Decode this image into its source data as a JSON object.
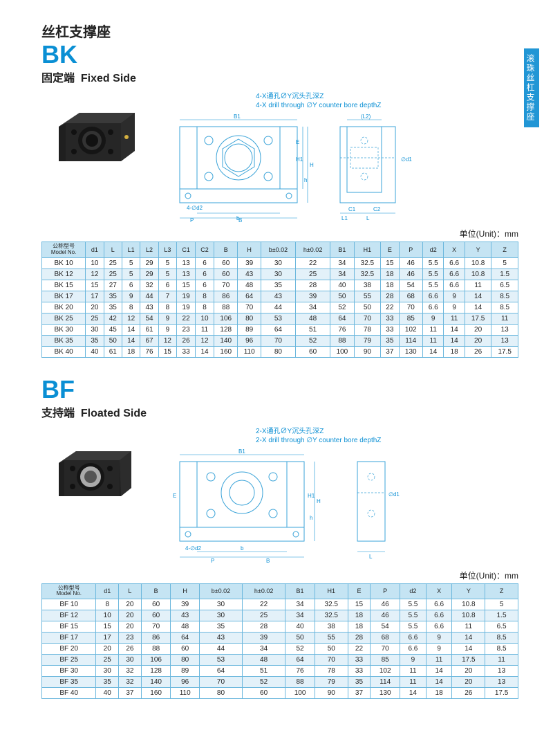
{
  "sideTab": "滚珠丝杠支撑座",
  "unitLabel": "单位(Unit)：mm",
  "bk": {
    "titleCn": "丝杠支撑座",
    "code": "BK",
    "subCn": "固定端",
    "subEn": "Fixed Side",
    "noteCn": "4-X通孔∅Y沉头孔深Z",
    "noteEn": "4-X drill through ∅Y counter bore depthZ",
    "colors": {
      "line": "#3aa3d8",
      "fill": "#c5e4f3",
      "photo": "#2a2a2a"
    },
    "table": {
      "headers": [
        "公称型号\nModel No.",
        "d1",
        "L",
        "L1",
        "L2",
        "L3",
        "C1",
        "C2",
        "B",
        "H",
        "b±0.02",
        "h±0.02",
        "B1",
        "H1",
        "E",
        "P",
        "d2",
        "X",
        "Y",
        "Z"
      ],
      "rows": [
        [
          "BK 10",
          "10",
          "25",
          "5",
          "29",
          "5",
          "13",
          "6",
          "60",
          "39",
          "30",
          "22",
          "34",
          "32.5",
          "15",
          "46",
          "5.5",
          "6.6",
          "10.8",
          "5"
        ],
        [
          "BK 12",
          "12",
          "25",
          "5",
          "29",
          "5",
          "13",
          "6",
          "60",
          "43",
          "30",
          "25",
          "34",
          "32.5",
          "18",
          "46",
          "5.5",
          "6.6",
          "10.8",
          "1.5"
        ],
        [
          "BK 15",
          "15",
          "27",
          "6",
          "32",
          "6",
          "15",
          "6",
          "70",
          "48",
          "35",
          "28",
          "40",
          "38",
          "18",
          "54",
          "5.5",
          "6.6",
          "11",
          "6.5"
        ],
        [
          "BK 17",
          "17",
          "35",
          "9",
          "44",
          "7",
          "19",
          "8",
          "86",
          "64",
          "43",
          "39",
          "50",
          "55",
          "28",
          "68",
          "6.6",
          "9",
          "14",
          "8.5"
        ],
        [
          "BK 20",
          "20",
          "35",
          "8",
          "43",
          "8",
          "19",
          "8",
          "88",
          "70",
          "44",
          "34",
          "52",
          "50",
          "22",
          "70",
          "6.6",
          "9",
          "14",
          "8.5"
        ],
        [
          "BK 25",
          "25",
          "42",
          "12",
          "54",
          "9",
          "22",
          "10",
          "106",
          "80",
          "53",
          "48",
          "64",
          "70",
          "33",
          "85",
          "9",
          "11",
          "17.5",
          "11"
        ],
        [
          "BK 30",
          "30",
          "45",
          "14",
          "61",
          "9",
          "23",
          "11",
          "128",
          "89",
          "64",
          "51",
          "76",
          "78",
          "33",
          "102",
          "11",
          "14",
          "20",
          "13"
        ],
        [
          "BK 35",
          "35",
          "50",
          "14",
          "67",
          "12",
          "26",
          "12",
          "140",
          "96",
          "70",
          "52",
          "88",
          "79",
          "35",
          "114",
          "11",
          "14",
          "20",
          "13"
        ],
        [
          "BK 40",
          "40",
          "61",
          "18",
          "76",
          "15",
          "33",
          "14",
          "160",
          "110",
          "80",
          "60",
          "100",
          "90",
          "37",
          "130",
          "14",
          "18",
          "26",
          "17.5"
        ]
      ]
    }
  },
  "bf": {
    "code": "BF",
    "subCn": "支持端",
    "subEn": "Floated Side",
    "noteCn": "2-X通孔∅Y沉头孔深Z",
    "noteEn": "2-X drill through ∅Y counter bore depthZ",
    "table": {
      "headers": [
        "公称型号\nModel No.",
        "d1",
        "L",
        "B",
        "H",
        "b±0.02",
        "h±0.02",
        "B1",
        "H1",
        "E",
        "P",
        "d2",
        "X",
        "Y",
        "Z"
      ],
      "rows": [
        [
          "BF 10",
          "8",
          "20",
          "60",
          "39",
          "30",
          "22",
          "34",
          "32.5",
          "15",
          "46",
          "5.5",
          "6.6",
          "10.8",
          "5"
        ],
        [
          "BF 12",
          "10",
          "20",
          "60",
          "43",
          "30",
          "25",
          "34",
          "32.5",
          "18",
          "46",
          "5.5",
          "6.6",
          "10.8",
          "1.5"
        ],
        [
          "BF 15",
          "15",
          "20",
          "70",
          "48",
          "35",
          "28",
          "40",
          "38",
          "18",
          "54",
          "5.5",
          "6.6",
          "11",
          "6.5"
        ],
        [
          "BF 17",
          "17",
          "23",
          "86",
          "64",
          "43",
          "39",
          "50",
          "55",
          "28",
          "68",
          "6.6",
          "9",
          "14",
          "8.5"
        ],
        [
          "BF 20",
          "20",
          "26",
          "88",
          "60",
          "44",
          "34",
          "52",
          "50",
          "22",
          "70",
          "6.6",
          "9",
          "14",
          "8.5"
        ],
        [
          "BF 25",
          "25",
          "30",
          "106",
          "80",
          "53",
          "48",
          "64",
          "70",
          "33",
          "85",
          "9",
          "11",
          "17.5",
          "11"
        ],
        [
          "BF 30",
          "30",
          "32",
          "128",
          "89",
          "64",
          "51",
          "76",
          "78",
          "33",
          "102",
          "11",
          "14",
          "20",
          "13"
        ],
        [
          "BF 35",
          "35",
          "32",
          "140",
          "96",
          "70",
          "52",
          "88",
          "79",
          "35",
          "114",
          "11",
          "14",
          "20",
          "13"
        ],
        [
          "BF 40",
          "40",
          "37",
          "160",
          "110",
          "80",
          "60",
          "100",
          "90",
          "37",
          "130",
          "14",
          "18",
          "26",
          "17.5"
        ]
      ]
    }
  }
}
